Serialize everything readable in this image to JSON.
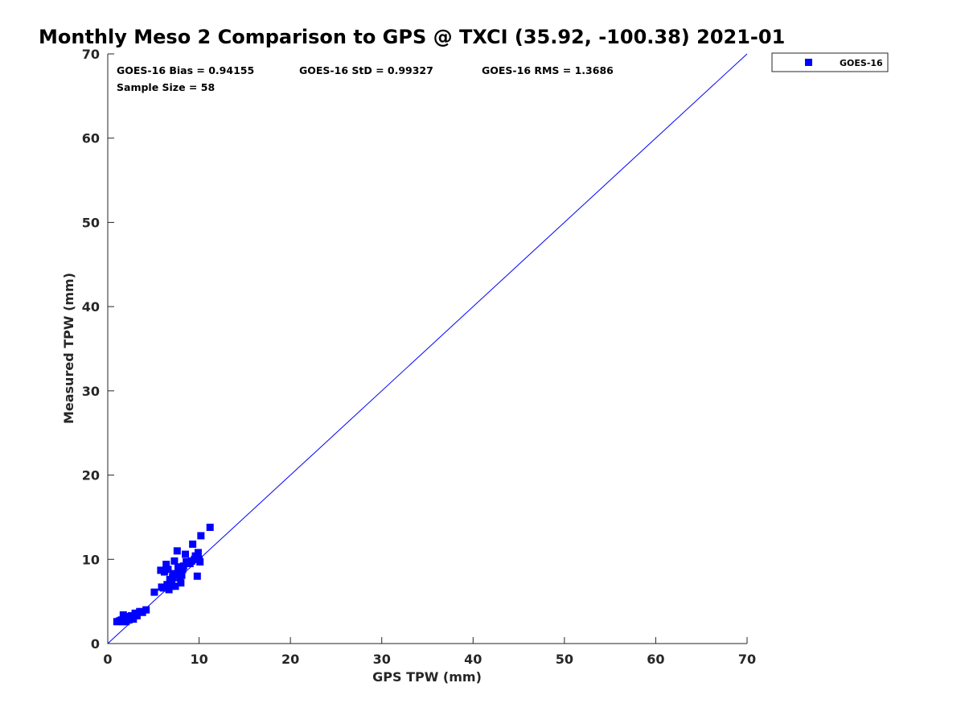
{
  "chart_data": {
    "type": "scatter",
    "title": "Monthly Meso 2 Comparison to GPS @ TXCI (35.92, -100.38) 2021-01",
    "xlabel": "GPS TPW (mm)",
    "ylabel": "Measured TPW (mm)",
    "xlim": [
      0,
      70
    ],
    "ylim": [
      0,
      70
    ],
    "xticks": [
      "0",
      "10",
      "20",
      "30",
      "40",
      "50",
      "60",
      "70"
    ],
    "yticks": [
      "0",
      "10",
      "20",
      "30",
      "40",
      "50",
      "60",
      "70"
    ],
    "grid": false,
    "legend_position": "top-right-outside",
    "reference_line": {
      "x": [
        0,
        70
      ],
      "y": [
        0,
        70
      ],
      "color": "#0000ff"
    },
    "annotations": {
      "bias": "GOES-16 Bias = 0.94155",
      "std": "GOES-16 StD = 0.99327",
      "rms": "GOES-16 RMS = 1.3686",
      "sample_size": "Sample Size = 58"
    },
    "series": [
      {
        "name": "GOES-16",
        "color": "#0000ff",
        "marker": "square",
        "points": [
          [
            1.0,
            2.6
          ],
          [
            1.3,
            2.7
          ],
          [
            1.6,
            2.6
          ],
          [
            1.7,
            3.4
          ],
          [
            1.9,
            2.9
          ],
          [
            2.0,
            2.6
          ],
          [
            2.2,
            3.2
          ],
          [
            2.3,
            2.8
          ],
          [
            2.5,
            3.0
          ],
          [
            2.6,
            3.3
          ],
          [
            2.8,
            2.9
          ],
          [
            3.0,
            3.6
          ],
          [
            3.2,
            3.3
          ],
          [
            3.5,
            3.8
          ],
          [
            3.2,
            3.5
          ],
          [
            4.2,
            4.0
          ],
          [
            5.1,
            6.1
          ],
          [
            5.8,
            8.7
          ],
          [
            5.9,
            6.7
          ],
          [
            6.2,
            8.5
          ],
          [
            6.4,
            9.4
          ],
          [
            6.6,
            8.8
          ],
          [
            6.8,
            7.6
          ],
          [
            6.7,
            6.4
          ],
          [
            6.9,
            6.8
          ],
          [
            7.0,
            7.2
          ],
          [
            7.2,
            8.3
          ],
          [
            7.3,
            9.8
          ],
          [
            7.4,
            6.8
          ],
          [
            7.5,
            8.1
          ],
          [
            7.6,
            11.0
          ],
          [
            7.7,
            9.1
          ],
          [
            7.8,
            8.6
          ],
          [
            7.9,
            7.8
          ],
          [
            8.0,
            7.2
          ],
          [
            8.1,
            8.1
          ],
          [
            8.2,
            8.8
          ],
          [
            8.5,
            10.6
          ],
          [
            8.6,
            9.7
          ],
          [
            9.0,
            9.5
          ],
          [
            9.2,
            9.8
          ],
          [
            9.3,
            11.8
          ],
          [
            9.5,
            10.0
          ],
          [
            9.6,
            10.4
          ],
          [
            9.7,
            10.2
          ],
          [
            9.8,
            8.0
          ],
          [
            9.9,
            10.8
          ],
          [
            10.0,
            10.0
          ],
          [
            10.1,
            9.7
          ],
          [
            10.2,
            12.8
          ],
          [
            11.2,
            13.8
          ],
          [
            6.5,
            7.0
          ],
          [
            7.1,
            7.9
          ],
          [
            8.3,
            9.2
          ],
          [
            6.1,
            6.6
          ],
          [
            2.1,
            3.1
          ],
          [
            1.5,
            2.8
          ],
          [
            3.8,
            3.7
          ]
        ]
      }
    ]
  }
}
